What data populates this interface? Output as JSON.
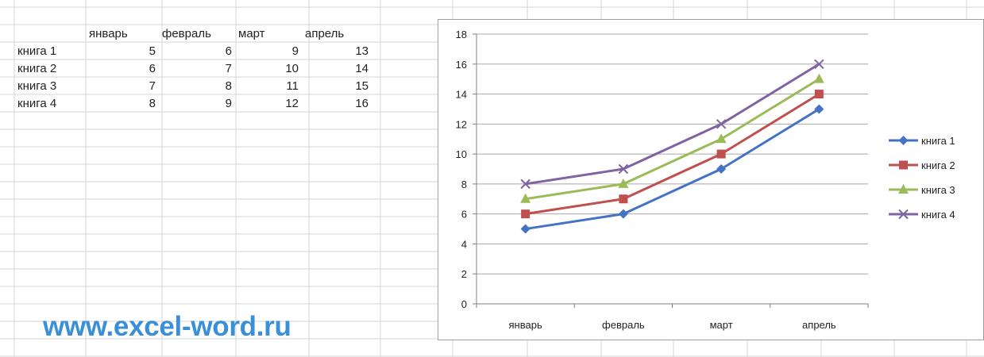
{
  "table": {
    "columns": [
      "январь",
      "февраль",
      "март",
      "апрель"
    ],
    "rows": [
      {
        "label": "книга 1",
        "values": [
          "5",
          "6",
          "9",
          "13"
        ]
      },
      {
        "label": "книга 2",
        "values": [
          "6",
          "7",
          "10",
          "14"
        ]
      },
      {
        "label": "книга 3",
        "values": [
          "7",
          "8",
          "11",
          "15"
        ]
      },
      {
        "label": "книга 4",
        "values": [
          "8",
          "9",
          "12",
          "16"
        ]
      }
    ]
  },
  "watermark": "www.excel-word.ru",
  "chart_data": {
    "type": "line",
    "categories": [
      "январь",
      "февраль",
      "март",
      "апрель"
    ],
    "ylim": [
      0,
      18
    ],
    "yticks": [
      0,
      2,
      4,
      6,
      8,
      10,
      12,
      14,
      16,
      18
    ],
    "grid": "horizontal major gridlines",
    "legend": "right",
    "series": [
      {
        "name": "книга 1",
        "values": [
          5,
          6,
          9,
          13
        ],
        "color": "#4472c4",
        "marker": "diamond"
      },
      {
        "name": "книга 2",
        "values": [
          6,
          7,
          10,
          14
        ],
        "color": "#c0504d",
        "marker": "square"
      },
      {
        "name": "книга 3",
        "values": [
          7,
          8,
          11,
          15
        ],
        "color": "#9bbb59",
        "marker": "triangle"
      },
      {
        "name": "книга 4",
        "values": [
          8,
          9,
          12,
          16
        ],
        "color": "#8064a2",
        "marker": "x"
      }
    ]
  }
}
